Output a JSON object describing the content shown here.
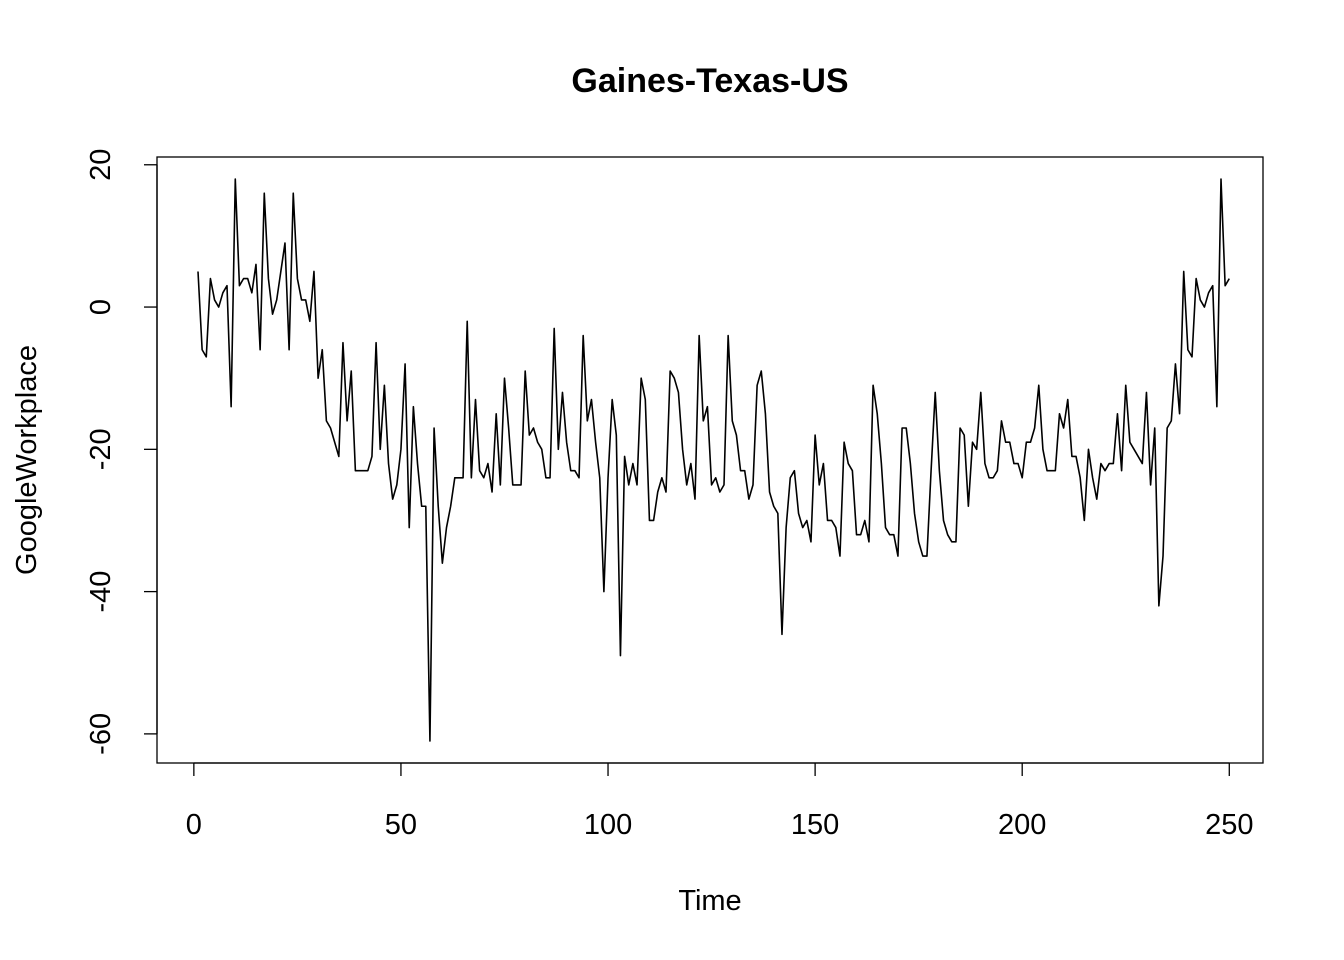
{
  "chart_data": {
    "type": "line",
    "title": "Gaines-Texas-US",
    "xlabel": "Time",
    "ylabel": "GoogleWorkplace",
    "xlim": [
      1,
      248
    ],
    "ylim": [
      -61,
      18
    ],
    "xticks": [
      0,
      50,
      100,
      150,
      200,
      250
    ],
    "yticks": [
      -60,
      -40,
      -20,
      0,
      20
    ],
    "grid": false,
    "legend": "none",
    "x_start": 1,
    "values": [
      5,
      -6,
      -7,
      4,
      1,
      0,
      2,
      3,
      -14,
      18,
      3,
      4,
      4,
      2,
      6,
      -6,
      16,
      4,
      -1,
      1,
      5,
      9,
      -6,
      16,
      4,
      1,
      1,
      -2,
      5,
      -10,
      -6,
      -16,
      -17,
      -19,
      -21,
      -5,
      -16,
      -9,
      -23,
      -23,
      -23,
      -23,
      -21,
      -5,
      -20,
      -11,
      -22,
      -27,
      -25,
      -20,
      -8,
      -31,
      -14,
      -22,
      -28,
      -28,
      -61,
      -17,
      -28,
      -36,
      -31,
      -28,
      -24,
      -24,
      -24,
      -2,
      -24,
      -13,
      -23,
      -24,
      -22,
      -26,
      -15,
      -25,
      -10,
      -17,
      -25,
      -25,
      -25,
      -9,
      -18,
      -17,
      -19,
      -20,
      -24,
      -24,
      -3,
      -20,
      -12,
      -19,
      -23,
      -23,
      -24,
      -4,
      -16,
      -13,
      -19,
      -24,
      -40,
      -24,
      -13,
      -18,
      -49,
      -21,
      -25,
      -22,
      -25,
      -10,
      -13,
      -30,
      -30,
      -26,
      -24,
      -26,
      -9,
      -10,
      -12,
      -20,
      -25,
      -22,
      -27,
      -4,
      -16,
      -14,
      -25,
      -24,
      -26,
      -25,
      -4,
      -16,
      -18,
      -23,
      -23,
      -27,
      -25,
      -11,
      -9,
      -15,
      -26,
      -28,
      -29,
      -46,
      -31,
      -24,
      -23,
      -29,
      -31,
      -30,
      -33,
      -18,
      -25,
      -22,
      -30,
      -30,
      -31,
      -35,
      -19,
      -22,
      -23,
      -32,
      -32,
      -30,
      -33,
      -11,
      -15,
      -22,
      -31,
      -32,
      -32,
      -35,
      -17,
      -17,
      -22,
      -29,
      -33,
      -35,
      -35,
      -23,
      -12,
      -23,
      -30,
      -32,
      -33,
      -33,
      -17,
      -18,
      -28,
      -19,
      -20,
      -12,
      -22,
      -24,
      -24,
      -23,
      -16,
      -19,
      -19,
      -22,
      -22,
      -24,
      -19,
      -19,
      -17,
      -11,
      -20,
      -23,
      -23,
      -23,
      -15,
      -17,
      -13,
      -21,
      -21,
      -24,
      -30,
      -20,
      -24,
      -27,
      -22,
      -23,
      -22,
      -22,
      -15,
      -23,
      -11,
      -19,
      -20,
      -21,
      -22,
      -12,
      -25,
      -17,
      -42,
      -35,
      -17,
      -16,
      -8,
      -15,
      5,
      -6,
      -7,
      4,
      1,
      0,
      2,
      3,
      -14,
      18,
      3,
      4
    ]
  }
}
